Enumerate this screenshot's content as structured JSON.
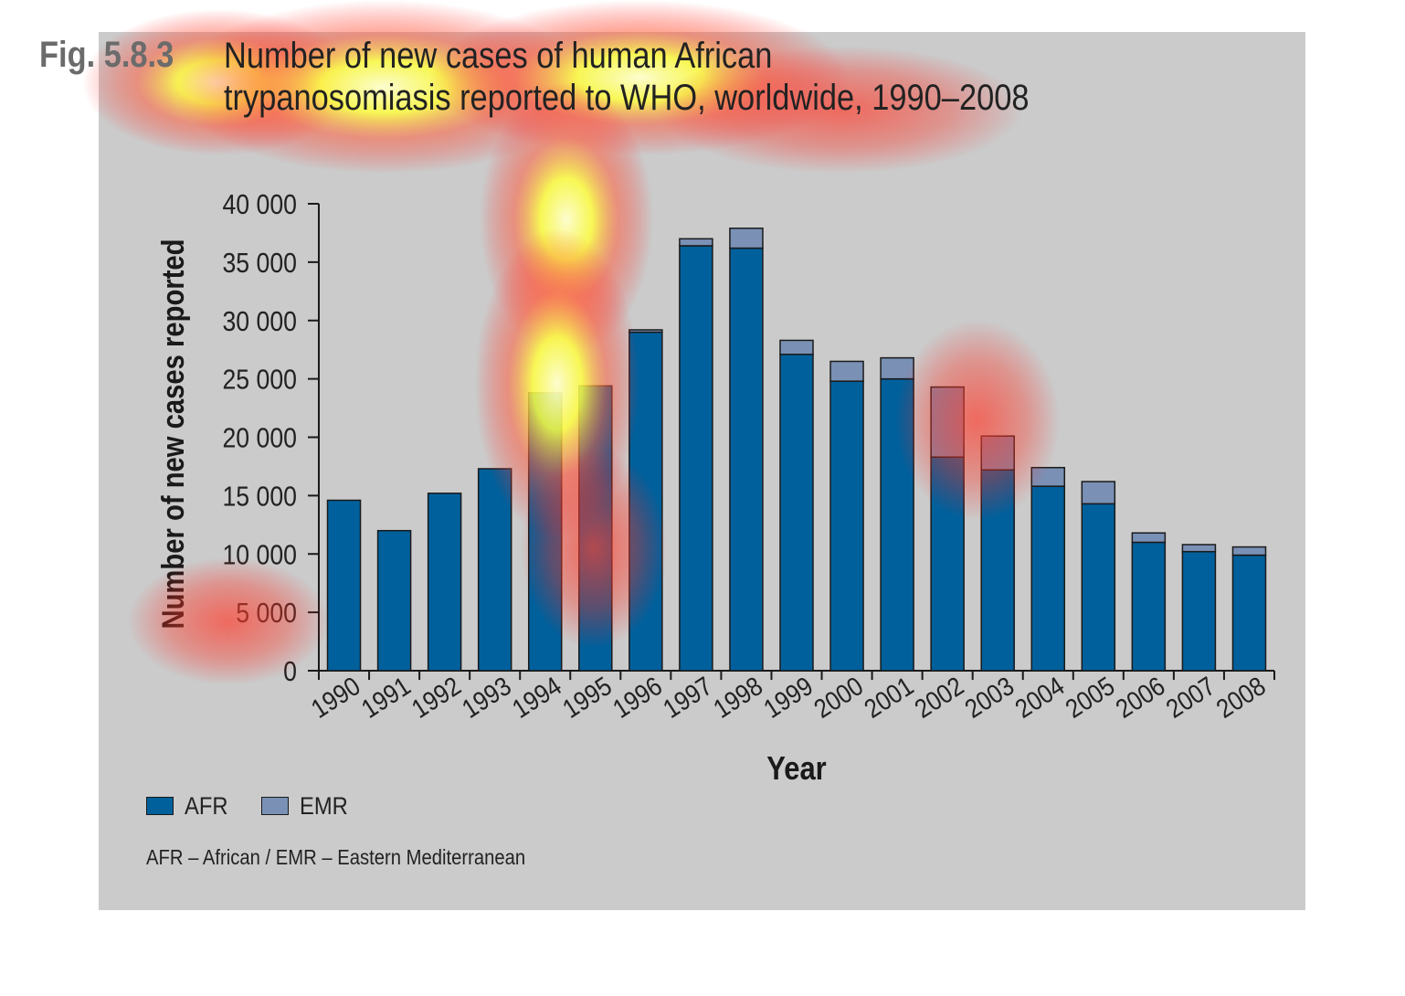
{
  "figure": {
    "label": "Fig. 5.8.3",
    "title_line1": "Number of new cases of human African",
    "title_line2": "trypanosomiasis reported to WHO, worldwide, 1990–2008"
  },
  "legend": {
    "afr_label": "AFR",
    "emr_label": "EMR"
  },
  "footnote": "AFR – African / EMR – Eastern Mediterranean",
  "colors": {
    "background": "#cbcbcb",
    "afr": "#00609c",
    "emr": "#7a91b5",
    "text": "#222222",
    "fig_label": "#6b6b6b",
    "heatmap_overlay": "attention heatmap (red/yellow)"
  },
  "chart_data": {
    "type": "bar",
    "stacked": true,
    "title": "Number of new cases of human African trypanosomiasis reported to WHO, worldwide, 1990–2008",
    "xlabel": "Year",
    "ylabel": "Number of new cases reported",
    "ylim": [
      0,
      40000
    ],
    "yticks": [
      "0",
      "5 000",
      "10 000",
      "15 000",
      "20 000",
      "25 000",
      "30 000",
      "35 000",
      "40 000"
    ],
    "ytick_values": [
      0,
      5000,
      10000,
      15000,
      20000,
      25000,
      30000,
      35000,
      40000
    ],
    "categories": [
      "1990",
      "1991",
      "1992",
      "1993",
      "1994",
      "1995",
      "1996",
      "1997",
      "1998",
      "1999",
      "2000",
      "2001",
      "2002",
      "2003",
      "2004",
      "2005",
      "2006",
      "2007",
      "2008"
    ],
    "series": [
      {
        "name": "AFR",
        "color": "#00609c",
        "values": [
          14600,
          12000,
          15200,
          17300,
          23800,
          24400,
          29000,
          36400,
          36200,
          27100,
          24800,
          25000,
          18300,
          17200,
          15800,
          14300,
          11000,
          10200,
          9900
        ]
      },
      {
        "name": "EMR",
        "color": "#7a91b5",
        "values": [
          0,
          0,
          0,
          0,
          0,
          0,
          200,
          600,
          1700,
          1200,
          1700,
          1800,
          6000,
          2900,
          1600,
          1900,
          800,
          600,
          700
        ]
      }
    ],
    "grid": false,
    "legend_position": "bottom-left"
  }
}
